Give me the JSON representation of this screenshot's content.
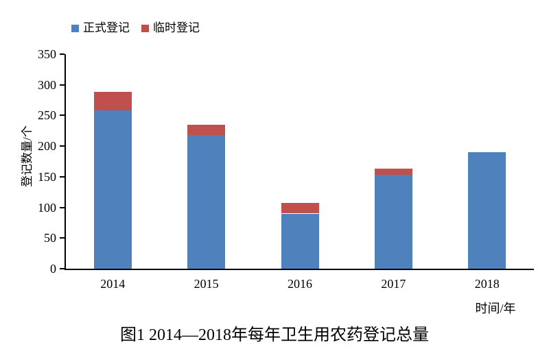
{
  "chart_data": {
    "type": "bar",
    "stacked": true,
    "caption": "图1 2014—2018年每年卫生用农药登记总量",
    "categories": [
      "2014",
      "2015",
      "2016",
      "2017",
      "2018"
    ],
    "series": [
      {
        "name": "正式登记",
        "color": "#4F81BD",
        "values": [
          258,
          218,
          90,
          153,
          190
        ]
      },
      {
        "name": "临时登记",
        "color": "#C0504D",
        "values": [
          31,
          17,
          17,
          10,
          0
        ]
      }
    ],
    "xlabel": "时间/年",
    "ylabel": "登记数量/个",
    "ylim": [
      0,
      350
    ],
    "yticks": [
      0,
      50,
      100,
      150,
      200,
      250,
      300,
      350
    ],
    "grid": false,
    "legend_position": "top-left",
    "axis_color": "#000000",
    "background_color": "#FFFFFF"
  }
}
